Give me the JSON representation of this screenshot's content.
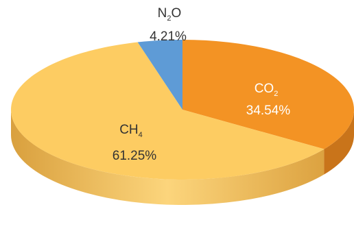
{
  "chart_data": {
    "type": "pie",
    "title": "",
    "slices": [
      {
        "name": "CO",
        "subscript": "2",
        "value": 34.54,
        "value_label": "34.54%",
        "color": "#F39324",
        "label_color": "#ffffff"
      },
      {
        "name": "CH",
        "subscript": "4",
        "value": 61.25,
        "value_label": "61.25%",
        "color": "#FDCC62",
        "label_color": "#333333"
      },
      {
        "name": "N",
        "subscript": "2",
        "suffix": "O",
        "value": 4.21,
        "value_label": "4.21%",
        "color": "#5E9BD6",
        "label_color": "#333333"
      }
    ],
    "style": "3d",
    "legend": "none"
  }
}
